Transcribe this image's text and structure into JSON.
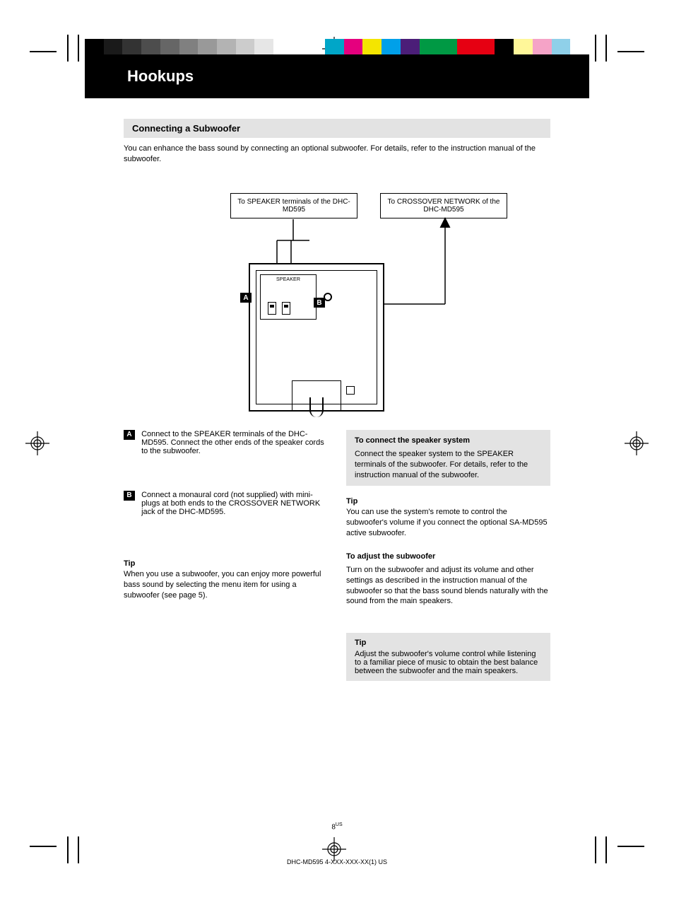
{
  "registration": {
    "grayscale_swatches": [
      "#000000",
      "#1a1a1a",
      "#333333",
      "#4d4d4d",
      "#666666",
      "#808080",
      "#999999",
      "#b3b3b3",
      "#cccccc",
      "#e6e6e6",
      "#ffffff"
    ],
    "color_swatches": [
      "#00a6c8",
      "#e5007e",
      "#f4e500",
      "#00a0e9",
      "#4b1e78",
      "#009944",
      "#009944",
      "#e60012",
      "#e60012",
      "#000000",
      "#fff799",
      "#f5a3c7",
      "#8fd0e9",
      "#ffffff"
    ]
  },
  "header": {
    "title": "Hookups"
  },
  "section": {
    "bar_text": "Connecting a Subwoofer"
  },
  "intro": {
    "text": "You can enhance the bass sound by connecting an optional subwoofer. For details, refer to the instruction manual of the subwoofer."
  },
  "callouts": {
    "left": "To SPEAKER terminals of the DHC-MD595",
    "right": "To CROSSOVER NETWORK of the DHC-MD595"
  },
  "diagram": {
    "panel_label": "SPEAKER",
    "marker_a": "A",
    "marker_b": "B"
  },
  "definitions": {
    "a": {
      "label": "A",
      "text": "Connect to the SPEAKER terminals of the DHC-MD595. Connect the other ends of the speaker cords to the subwoofer."
    },
    "b": {
      "label": "B",
      "text": "Connect a monaural cord (not supplied) with mini-plugs at both ends to the CROSSOVER NETWORK jack of the DHC-MD595."
    }
  },
  "tip_main": {
    "title": "Tip",
    "body": "When you use a subwoofer, you can enjoy more powerful bass sound by selecting the menu item for using a subwoofer (see page 5)."
  },
  "right_column": {
    "speakers": {
      "heading": "To connect the speaker system",
      "body": "Connect the speaker system to the SPEAKER terminals of the subwoofer. For details, refer to the instruction manual of the subwoofer."
    },
    "tip_small": {
      "title": "Tip",
      "body": "You can use the system's remote to control the subwoofer's volume if you connect the optional SA-MD595 active subwoofer."
    },
    "adjust": {
      "heading": "To adjust the subwoofer",
      "body": "Turn on the subwoofer and adjust its volume and other settings as described in the instruction manual of the subwoofer so that the bass sound blends naturally with the sound from the main speakers."
    },
    "tip_vol": {
      "title": "Tip",
      "body": "Adjust the subwoofer's volume control while listening to a familiar piece of music to obtain the best balance between the subwoofer and the main speakers."
    }
  },
  "footer": {
    "page": "8",
    "total": "US",
    "filename": "DHC-MD595  4-XXX-XXX-XX(1)  US"
  },
  "colors": {
    "gray_box": "#e3e3e3",
    "black": "#000000"
  }
}
